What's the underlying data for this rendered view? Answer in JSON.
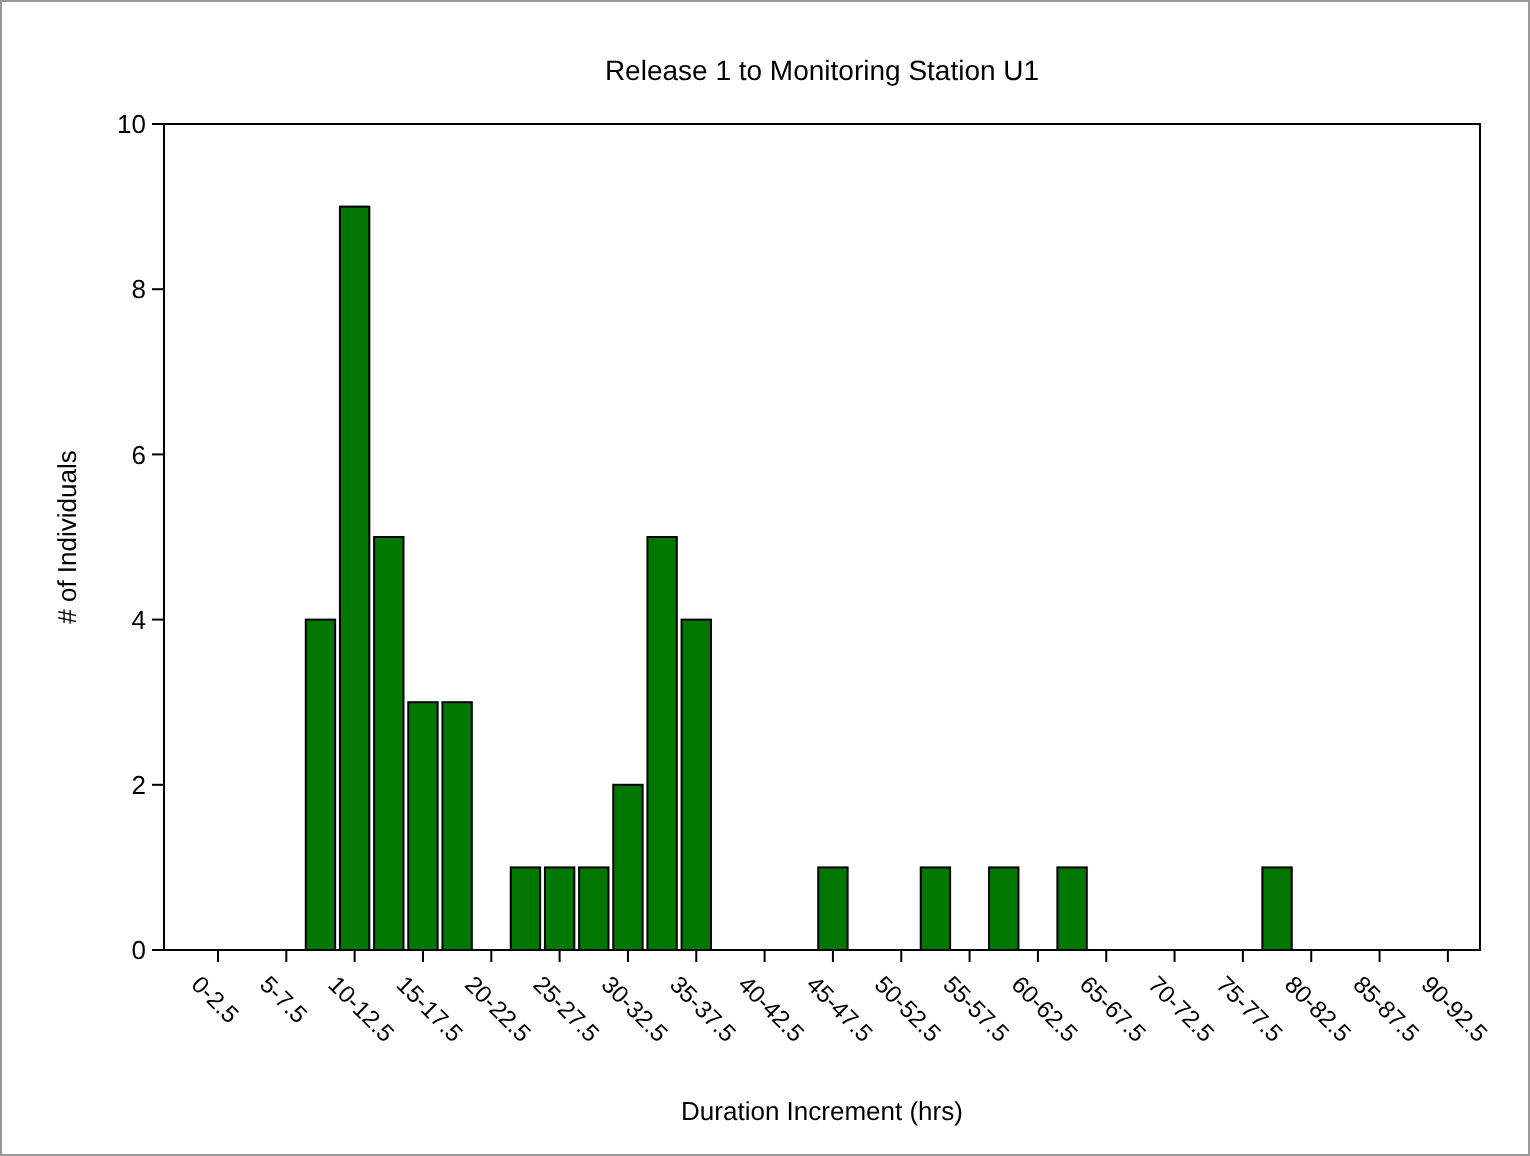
{
  "chart_data": {
    "type": "bar",
    "title": "Release 1 to Monitoring Station U1",
    "xlabel": "Duration Increment (hrs)",
    "ylabel": "# of Individuals",
    "categories": [
      "0-2.5",
      null,
      "5-7.5",
      null,
      "10-12.5",
      null,
      "15-17.5",
      null,
      "20-22.5",
      null,
      "25-27.5",
      null,
      "30-32.5",
      null,
      "35-37.5",
      null,
      "40-42.5",
      null,
      "45-47.5",
      null,
      "50-52.5",
      null,
      "55-57.5",
      null,
      "60-62.5",
      null,
      "65-67.5",
      null,
      "70-72.5",
      null,
      "75-77.5",
      null,
      "80-82.5",
      null,
      "85-87.5",
      null,
      "90-92.5"
    ],
    "values": [
      0,
      0,
      0,
      4,
      9,
      5,
      3,
      3,
      0,
      1,
      1,
      1,
      2,
      5,
      4,
      0,
      0,
      0,
      1,
      0,
      0,
      1,
      0,
      1,
      0,
      1,
      0,
      0,
      0,
      0,
      0,
      1,
      0,
      0,
      0,
      0,
      0
    ],
    "color": "#007700",
    "ylim": [
      0,
      10
    ],
    "yticks": [
      0,
      2,
      4,
      6,
      8,
      10
    ],
    "grid": false
  }
}
